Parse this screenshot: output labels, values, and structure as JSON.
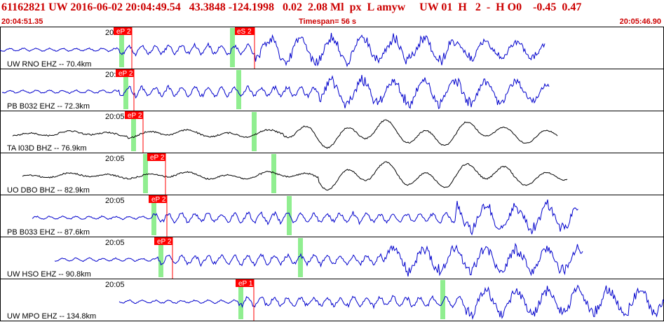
{
  "header": {
    "title": "61162821 UW 2016-06-02 20:04:49.54   43.3848 -124.1998   0.02  2.08 Ml  px  L amyw     UW 01  H   2  -  H O0    -0.45  0.47",
    "start_time": "20:04:51.35",
    "timespan": "Timespan=  56 s",
    "end_time": "20:05:46.90"
  },
  "colors": {
    "trace_blue": "#0000cc",
    "trace_black": "#000000",
    "pick_red": "#ff0000",
    "marker_green": "#90ee90",
    "header_red": "#cc0000"
  },
  "traces": [
    {
      "station": "UW RNO EHZ -- 70.4km",
      "time_label": "20:05",
      "pick_label": "eP 2",
      "s_label": "eS 2",
      "color": "blue"
    },
    {
      "station": "PB B032 EHZ -- 72.3km",
      "time_label": "20:05",
      "pick_label": "eP 2",
      "s_label": "",
      "color": "blue"
    },
    {
      "station": "TA I03D BHZ -- 76.9km",
      "time_label": "20:05",
      "pick_label": "eP 2",
      "s_label": "",
      "color": "black"
    },
    {
      "station": "UO DBO BHZ -- 82.9km",
      "time_label": "20:05",
      "pick_label": "eP 2",
      "s_label": "",
      "color": "black"
    },
    {
      "station": "PB B033 EHZ -- 87.6km",
      "time_label": "20:05",
      "pick_label": "eP 2",
      "s_label": "",
      "color": "blue"
    },
    {
      "station": "UW HSO EHZ -- 90.8km",
      "time_label": "20:05",
      "pick_label": "eP 2",
      "s_label": "",
      "color": "blue"
    },
    {
      "station": "UW MPO EHZ -- 134.8km",
      "time_label": "20:05",
      "pick_label": "eP 1",
      "s_label": "",
      "color": "blue"
    }
  ]
}
